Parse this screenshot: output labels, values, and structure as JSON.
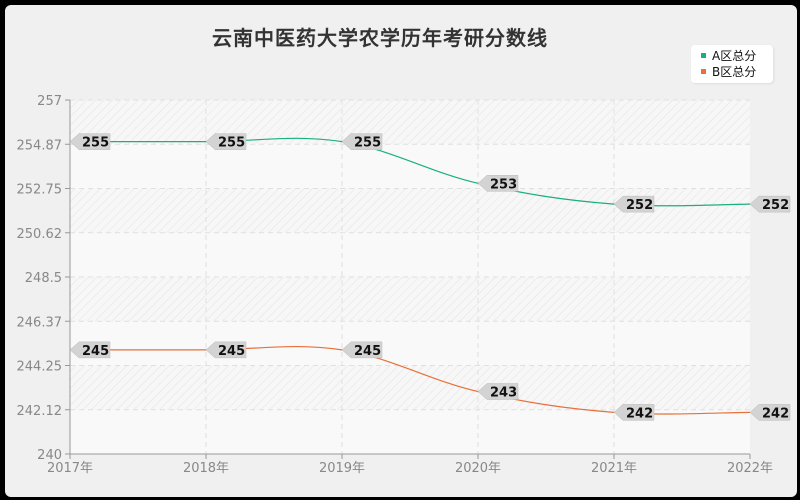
{
  "title": "云南中医药大学农学历年考研分数线",
  "legend": [
    {
      "label": "A区总分",
      "color": "#1aaf7f"
    },
    {
      "label": "B区总分",
      "color": "#e8703a"
    }
  ],
  "chart_data": {
    "type": "line",
    "title": "云南中医药大学农学历年考研分数线",
    "xlabel": "",
    "ylabel": "",
    "categories": [
      "2017年",
      "2018年",
      "2019年",
      "2020年",
      "2021年",
      "2022年"
    ],
    "series": [
      {
        "name": "A区总分",
        "color": "#1aaf7f",
        "values": [
          255,
          255,
          255,
          253,
          252,
          252
        ]
      },
      {
        "name": "B区总分",
        "color": "#e8703a",
        "values": [
          245,
          245,
          245,
          243,
          242,
          242
        ]
      }
    ],
    "ylim": [
      240,
      257
    ],
    "yticks": [
      "240",
      "242.12",
      "244.25",
      "246.37",
      "248.5",
      "250.62",
      "252.75",
      "254.87",
      "257"
    ],
    "grid": true,
    "legend_position": "top-right",
    "smooth": true,
    "data_labels": true
  }
}
